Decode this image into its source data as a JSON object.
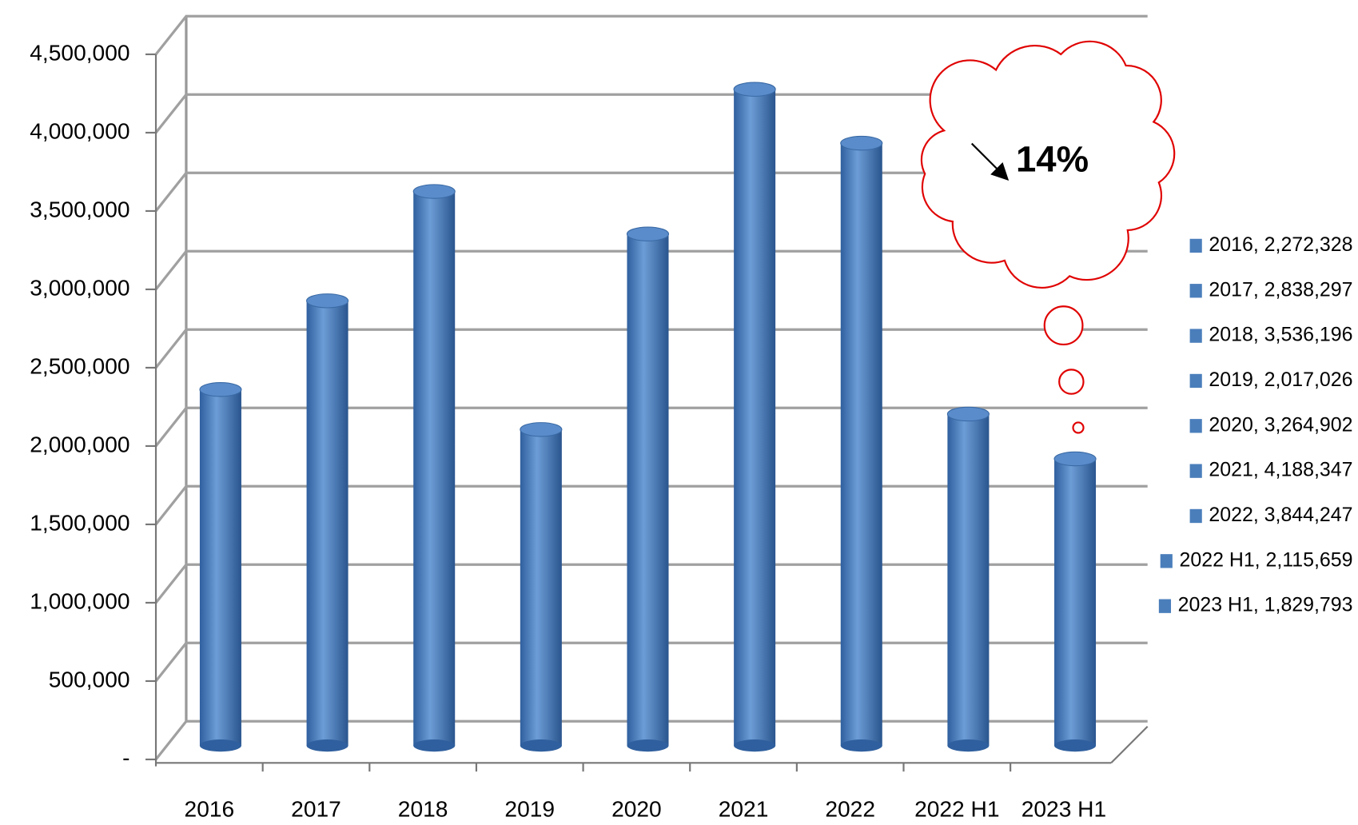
{
  "chart_data": {
    "type": "bar",
    "categories": [
      "2016",
      "2017",
      "2018",
      "2019",
      "2020",
      "2021",
      "2022",
      "2022 H1",
      "2023 H1"
    ],
    "values": [
      2272328,
      2838297,
      3536196,
      2017026,
      3264902,
      4188347,
      3844247,
      2115659,
      1829793
    ],
    "color": "#4a7ebb",
    "ylim": [
      0,
      4500000
    ],
    "yticks": [
      {
        "value": 0,
        "label": "-"
      },
      {
        "value": 500000,
        "label": "500,000"
      },
      {
        "value": 1000000,
        "label": "1,000,000"
      },
      {
        "value": 1500000,
        "label": "1,500,000"
      },
      {
        "value": 2000000,
        "label": "2,000,000"
      },
      {
        "value": 2500000,
        "label": "2,500,000"
      },
      {
        "value": 3000000,
        "label": "3,000,000"
      },
      {
        "value": 3500000,
        "label": "3,500,000"
      },
      {
        "value": 4000000,
        "label": "4,000,000"
      },
      {
        "value": 4500000,
        "label": "4,500,000"
      }
    ],
    "grid": true,
    "legend": [
      "2016, 2,272,328",
      "2017, 2,838,297",
      "2018, 3,536,196",
      "2019, 2,017,026",
      "2020, 3,264,902",
      "2021, 4,188,347",
      "2022, 3,844,247",
      "2022 H1, 2,115,659",
      "2023 H1, 1,829,793"
    ],
    "annotation": "14%"
  }
}
